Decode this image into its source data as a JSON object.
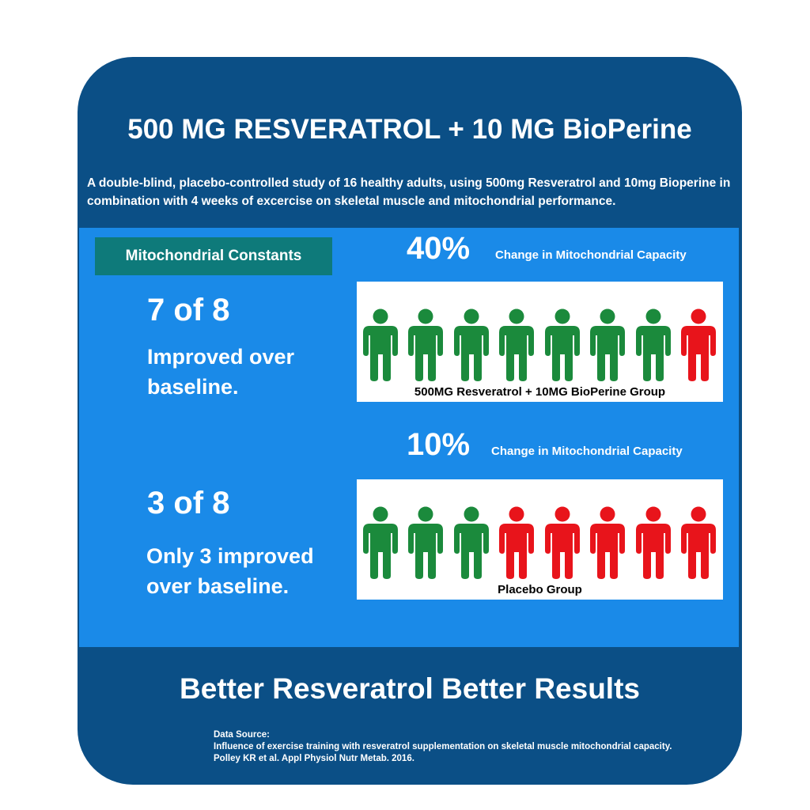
{
  "header": {
    "title": "500 MG RESVERATROL + 10 MG BioPerine",
    "subtitle": "A double-blind, placebo-controlled study of 16 healthy adults, using 500mg Resveratrol and 10mg Bioperine in combination with 4 weeks of excercise on skeletal muscle and mitochondrial performance."
  },
  "badge": "Mitochondrial Constants",
  "groups": [
    {
      "percent": "40%",
      "percent_label": "Change in Mitochondrial Capacity",
      "count": "7 of 8",
      "description_line1": "Improved over",
      "description_line2": "baseline.",
      "label": "500MG Resveratrol + 10MG BioPerine Group",
      "improved": 7,
      "total": 8
    },
    {
      "percent": "10%",
      "percent_label": "Change in Mitochondrial Capacity",
      "count": "3 of 8",
      "description_line1": "Only 3 improved",
      "description_line2": "over baseline.",
      "label": "Placebo Group",
      "improved": 3,
      "total": 8
    }
  ],
  "colors": {
    "improved": "#1b8a3c",
    "not_improved": "#e8141b",
    "card": "#0b4f86",
    "panel": "#1a8ae8",
    "badge": "#0e7a7a"
  },
  "footer": {
    "tagline": "Better Resveratrol Better Results",
    "source_heading": "Data Source:",
    "source_text": "Influence of exercise training with resveratrol supplementation on skeletal muscle mitochondrial capacity. Polley KR et al. Appl Physiol Nutr Metab. 2016."
  }
}
